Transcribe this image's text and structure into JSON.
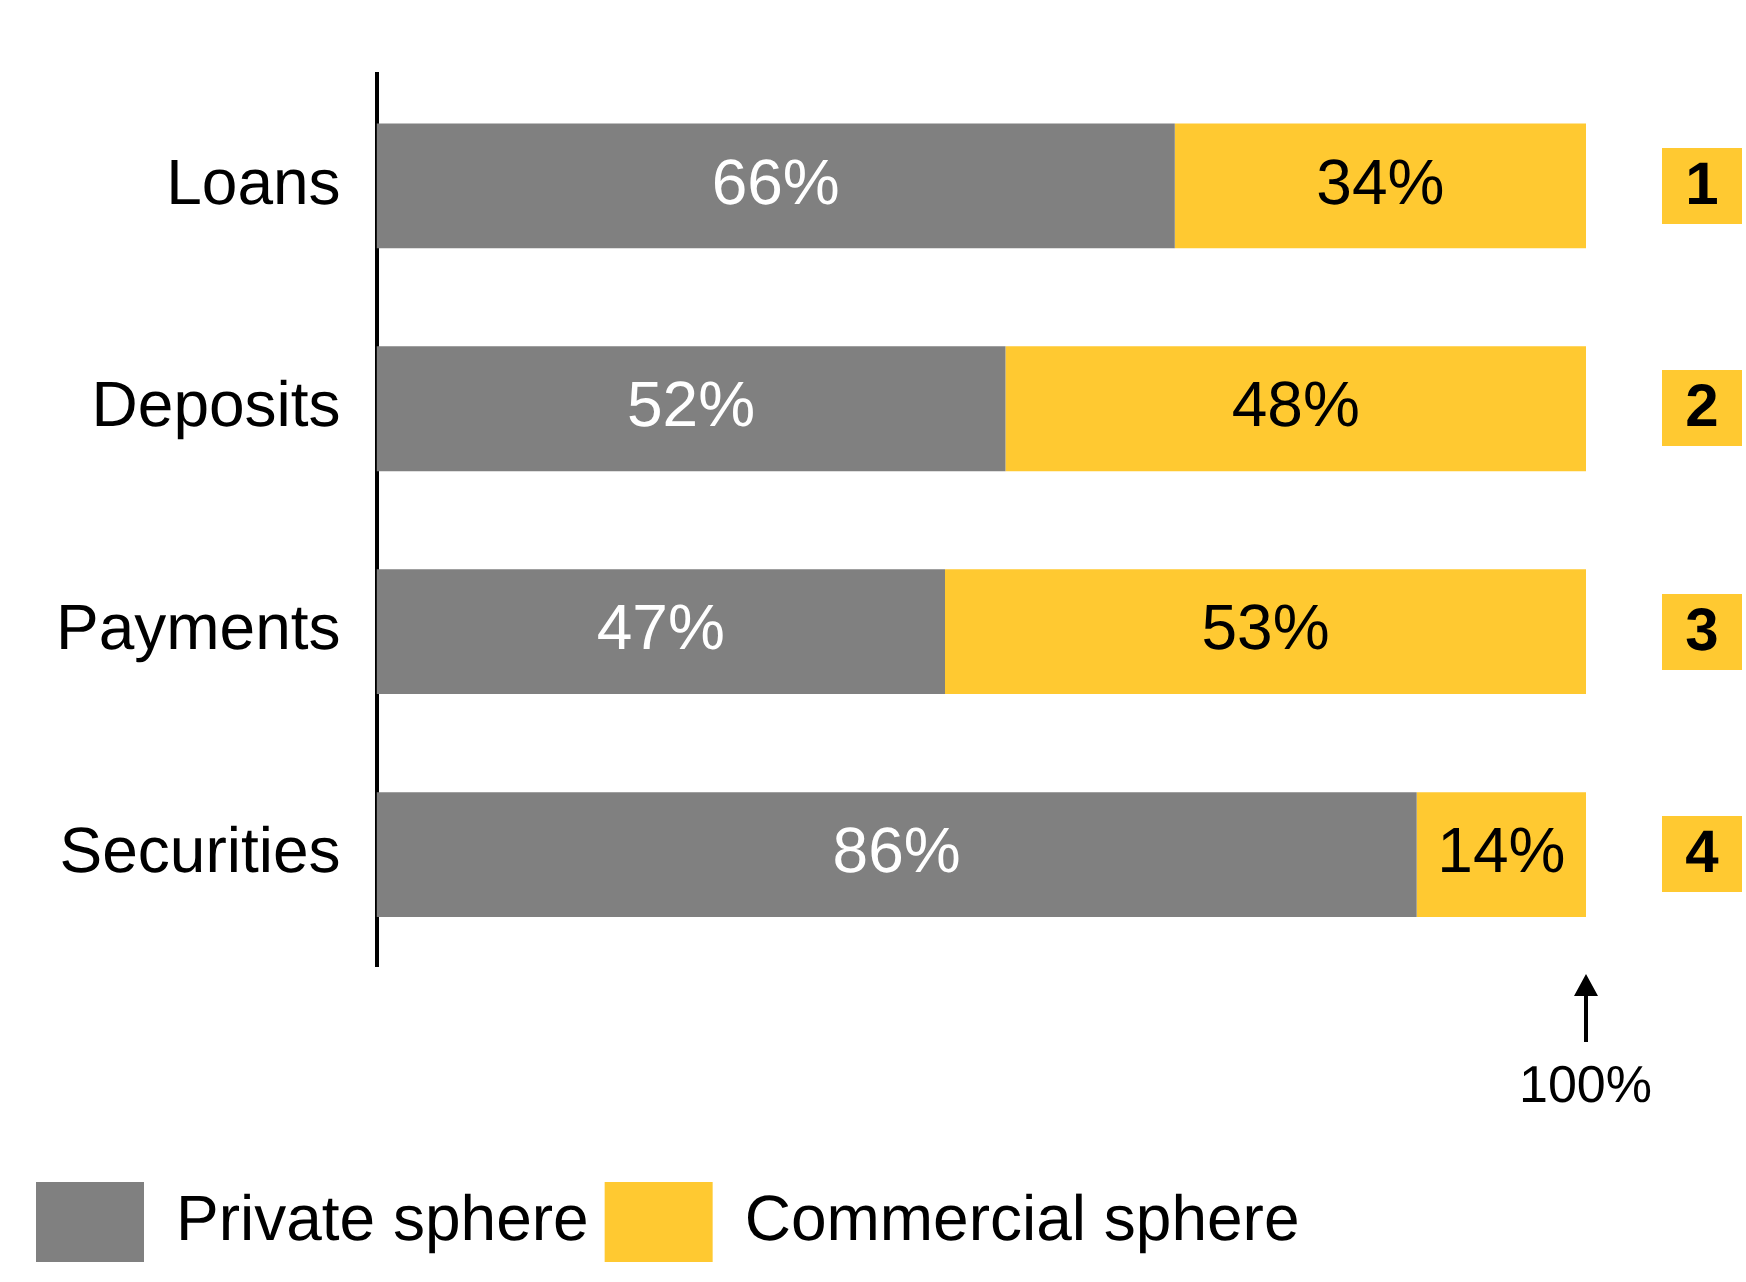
{
  "chart_data": {
    "type": "bar",
    "orientation": "horizontal",
    "stacked": true,
    "categories": [
      "Loans",
      "Deposits",
      "Payments",
      "Securities"
    ],
    "series": [
      {
        "name": "Private sphere",
        "color": "#808080",
        "values": [
          66,
          52,
          47,
          86
        ],
        "value_labels": [
          "66%",
          "52%",
          "47%",
          "86%"
        ]
      },
      {
        "name": "Commercial sphere",
        "color": "#ffc931",
        "values": [
          34,
          48,
          53,
          14
        ],
        "value_labels": [
          "34%",
          "48%",
          "53%",
          "14%"
        ]
      }
    ],
    "tick_labels": "y",
    "grid": false,
    "legend": "bottom",
    "annotations": [
      "1",
      "2",
      "3",
      "4",
      "100%"
    ]
  }
}
